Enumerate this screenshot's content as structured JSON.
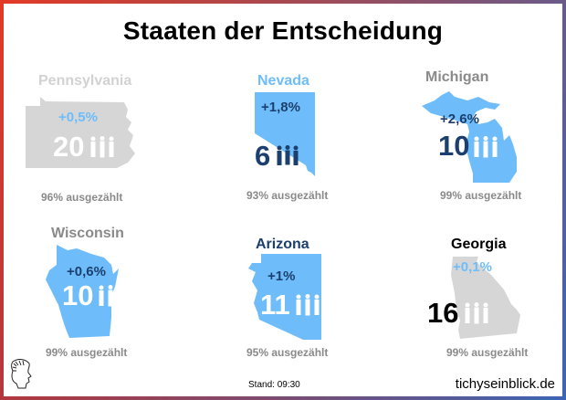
{
  "title": "Staaten der Entscheidung",
  "colors": {
    "light_blue": "#6ebdfa",
    "dark_blue": "#1b3f6e",
    "grey_shape": "#d6d6d6",
    "grey_text": "#8a8a8a",
    "grey_name": "#d2d2d2"
  },
  "states": [
    {
      "name": "Pennsylvania",
      "change": "+0,5%",
      "electors": "20",
      "counted": "96% ausgezählt"
    },
    {
      "name": "Nevada",
      "change": "+1,8%",
      "electors": "6",
      "counted": "93% ausgezählt"
    },
    {
      "name": "Michigan",
      "change": "+2,6%",
      "electors": "10",
      "counted": "99% ausgezählt"
    },
    {
      "name": "Wisconsin",
      "change": "+0,6%",
      "electors": "10",
      "counted": "99% ausgezählt"
    },
    {
      "name": "Arizona",
      "change": "+1%",
      "electors": "11",
      "counted": "95% ausgezählt"
    },
    {
      "name": "Georgia",
      "change": "+0,1%",
      "electors": "16",
      "counted": "99% ausgezählt"
    }
  ],
  "footer": {
    "stand": "Stand: 09:30",
    "brand": "tichyseinblick.de",
    "logo": "head-profile-logo"
  }
}
